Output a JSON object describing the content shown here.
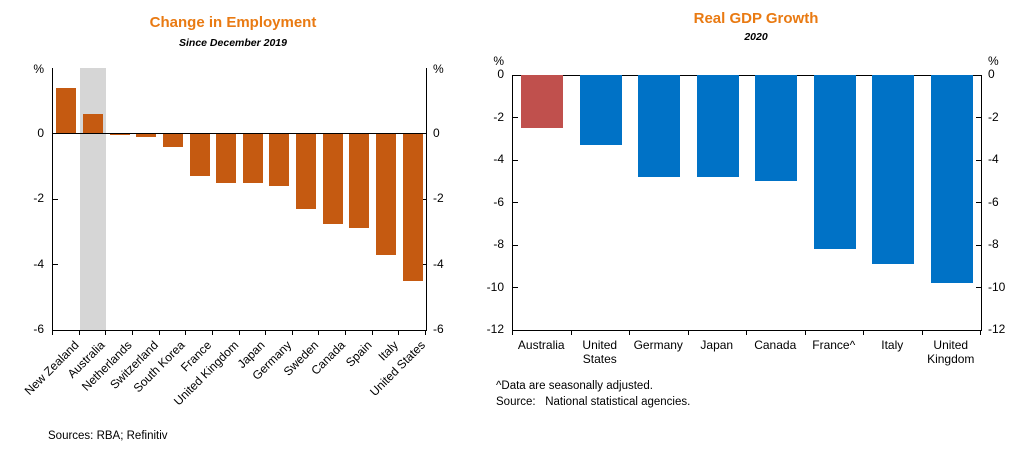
{
  "chart_data": [
    {
      "type": "bar",
      "title": "Change in Employment",
      "subtitle": "Since December 2019",
      "unit": "%",
      "ylim": [
        -6,
        2
      ],
      "yticks": [
        0,
        -2,
        -4,
        -6
      ],
      "grid": false,
      "categories": [
        "New Zealand",
        "Australia",
        "Netherlands",
        "Switzerland",
        "South Korea",
        "France",
        "United Kingdom",
        "Japan",
        "Germany",
        "Sweden",
        "Canada",
        "Spain",
        "Italy",
        "United States"
      ],
      "values": [
        1.4,
        0.6,
        -0.05,
        -0.1,
        -0.4,
        -1.3,
        -1.5,
        -1.5,
        -1.6,
        -2.3,
        -2.75,
        -2.9,
        -3.7,
        -4.5
      ],
      "bar_color": "#c55a11",
      "title_color": "#e97a12",
      "highlight_band": {
        "category": "Australia",
        "color": "#d6d6d6"
      }
    },
    {
      "type": "bar",
      "title": "Real GDP Growth",
      "subtitle": "2020",
      "unit": "%",
      "ylim": [
        -12,
        0
      ],
      "yticks": [
        0,
        -2,
        -4,
        -6,
        -8,
        -10,
        -12
      ],
      "grid": false,
      "categories": [
        "Australia",
        "United States",
        "Germany",
        "Japan",
        "Canada",
        "France^",
        "Italy",
        "United Kingdom"
      ],
      "values": [
        -2.5,
        -3.3,
        -4.8,
        -4.8,
        -5.0,
        -8.2,
        -8.9,
        -9.8
      ],
      "bar_color": "#0072c6",
      "title_color": "#e97a12",
      "highlight_bar": {
        "category": "Australia",
        "color": "#c0504d"
      },
      "footnotes": [
        "^Data are seasonally adjusted.",
        "Source:   National statistical agencies."
      ]
    }
  ],
  "footer": {
    "sources": "Sources: RBA; Refinitiv"
  }
}
